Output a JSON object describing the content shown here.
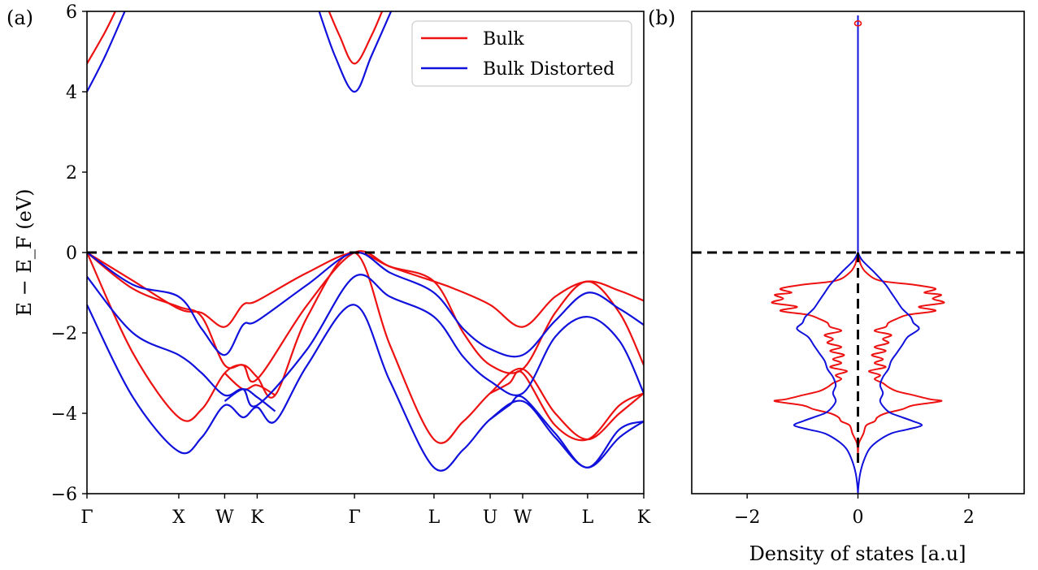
{
  "chart_data": [
    {
      "panel": "(a)",
      "type": "line",
      "ylabel": "E − E_F (eV)",
      "ylim": [
        -6,
        6
      ],
      "yticks": [
        "−6",
        "−4",
        "−2",
        "0",
        "2",
        "4",
        "6"
      ],
      "xticks": [
        {
          "label": "Γ",
          "x": 0
        },
        {
          "label": "X",
          "x": 1.0
        },
        {
          "label": "W",
          "x": 1.5
        },
        {
          "label": "K",
          "x": 1.854
        },
        {
          "label": "Γ",
          "x": 2.914
        },
        {
          "label": "L",
          "x": 3.78
        },
        {
          "label": "U",
          "x": 4.392
        },
        {
          "label": "W",
          "x": 4.746
        },
        {
          "label": "L",
          "x": 5.453
        },
        {
          "label": "K",
          "x": 6.065
        }
      ],
      "xlim": [
        0,
        6.065
      ],
      "fermi_level": 0,
      "legend": {
        "position": "top-right",
        "entries": [
          "Bulk",
          "Bulk Distorted"
        ]
      },
      "series": [
        {
          "name": "Bulk",
          "color": "#ee1111",
          "bands": [
            [
              [
                0,
                0
              ],
              [
                0.5,
                -0.7
              ],
              [
                1.0,
                -1.4
              ],
              [
                1.25,
                -1.5
              ],
              [
                1.5,
                -1.85
              ],
              [
                1.7,
                -1.3
              ],
              [
                1.854,
                -1.2
              ],
              [
                2.4,
                -0.5
              ],
              [
                2.914,
                0
              ],
              [
                3.3,
                -0.35
              ],
              [
                3.78,
                -0.72
              ],
              [
                4.0,
                -0.9
              ],
              [
                4.392,
                -1.3
              ],
              [
                4.746,
                -1.85
              ],
              [
                5.1,
                -1.1
              ],
              [
                5.453,
                -0.72
              ],
              [
                5.8,
                -0.95
              ],
              [
                6.065,
                -1.2
              ]
            ],
            [
              [
                0,
                0
              ],
              [
                0.5,
                -0.9
              ],
              [
                1.0,
                -1.35
              ],
              [
                1.25,
                -1.6
              ],
              [
                1.5,
                -2.8
              ],
              [
                1.7,
                -2.8
              ],
              [
                1.854,
                -3.15
              ],
              [
                2.4,
                -1.3
              ],
              [
                2.914,
                0
              ],
              [
                3.3,
                -0.35
              ],
              [
                3.78,
                -0.72
              ],
              [
                4.1,
                -2.0
              ],
              [
                4.392,
                -2.8
              ],
              [
                4.746,
                -2.9
              ],
              [
                5.1,
                -1.5
              ],
              [
                5.453,
                -0.72
              ],
              [
                5.8,
                -1.5
              ],
              [
                6.065,
                -2.8
              ]
            ],
            [
              [
                0,
                0
              ],
              [
                0.5,
                -2.5
              ],
              [
                1.0,
                -4.1
              ],
              [
                1.25,
                -3.9
              ],
              [
                1.5,
                -3.0
              ],
              [
                1.7,
                -2.8
              ],
              [
                1.854,
                -3.1
              ],
              [
                2.05,
                -3.55
              ],
              [
                2.4,
                -1.6
              ],
              [
                2.914,
                0
              ],
              [
                3.3,
                -2.3
              ],
              [
                3.78,
                -4.65
              ],
              [
                4.1,
                -4.2
              ],
              [
                4.392,
                -3.5
              ],
              [
                4.746,
                -2.9
              ],
              [
                5.1,
                -4.0
              ],
              [
                5.453,
                -4.65
              ],
              [
                5.8,
                -4.0
              ],
              [
                6.065,
                -3.5
              ]
            ],
            [
              [
                1.5,
                -3.0
              ],
              [
                1.7,
                -3.4
              ],
              [
                1.854,
                -3.3
              ],
              [
                2.05,
                -3.55
              ]
            ],
            [
              [
                4.392,
                -3.5
              ],
              [
                4.6,
                -3.25
              ],
              [
                4.746,
                -3.0
              ],
              [
                5.1,
                -4.3
              ],
              [
                5.453,
                -4.65
              ],
              [
                5.8,
                -3.8
              ],
              [
                6.065,
                -3.5
              ]
            ],
            [
              [
                0,
                4.7
              ],
              [
                0.2,
                5.5
              ],
              [
                0.35,
                6.2
              ]
            ],
            [
              [
                2.6,
                6.2
              ],
              [
                2.75,
                5.4
              ],
              [
                2.914,
                4.7
              ],
              [
                3.1,
                5.4
              ],
              [
                3.25,
                6.2
              ]
            ]
          ]
        },
        {
          "name": "Bulk Distorted",
          "color": "#1111dd",
          "bands": [
            [
              [
                0,
                0
              ],
              [
                0.5,
                -0.8
              ],
              [
                1.0,
                -1.1
              ],
              [
                1.25,
                -1.9
              ],
              [
                1.5,
                -2.55
              ],
              [
                1.7,
                -1.8
              ],
              [
                1.854,
                -1.7
              ],
              [
                2.4,
                -0.8
              ],
              [
                2.914,
                0
              ],
              [
                3.3,
                -0.5
              ],
              [
                3.78,
                -1.0
              ],
              [
                4.1,
                -1.9
              ],
              [
                4.392,
                -2.4
              ],
              [
                4.746,
                -2.55
              ],
              [
                5.1,
                -1.7
              ],
              [
                5.453,
                -1.0
              ],
              [
                5.8,
                -1.4
              ],
              [
                6.065,
                -1.8
              ]
            ],
            [
              [
                0,
                -0.6
              ],
              [
                0.5,
                -2.0
              ],
              [
                1.0,
                -2.55
              ],
              [
                1.25,
                -3.0
              ],
              [
                1.5,
                -3.55
              ],
              [
                1.7,
                -3.4
              ],
              [
                1.854,
                -3.8
              ],
              [
                2.4,
                -2.4
              ],
              [
                2.914,
                -0.6
              ],
              [
                3.3,
                -1.1
              ],
              [
                3.78,
                -1.6
              ],
              [
                4.1,
                -2.6
              ],
              [
                4.392,
                -3.2
              ],
              [
                4.746,
                -3.5
              ],
              [
                5.1,
                -2.1
              ],
              [
                5.453,
                -1.6
              ],
              [
                5.8,
                -2.2
              ],
              [
                6.065,
                -3.5
              ]
            ],
            [
              [
                0,
                -1.3
              ],
              [
                0.5,
                -3.6
              ],
              [
                1.0,
                -4.95
              ],
              [
                1.25,
                -4.6
              ],
              [
                1.5,
                -3.8
              ],
              [
                1.7,
                -4.1
              ],
              [
                1.854,
                -3.85
              ],
              [
                2.05,
                -4.2
              ],
              [
                2.4,
                -2.8
              ],
              [
                2.914,
                -1.3
              ],
              [
                3.3,
                -3.2
              ],
              [
                3.78,
                -5.35
              ],
              [
                4.1,
                -4.9
              ],
              [
                4.392,
                -4.15
              ],
              [
                4.746,
                -3.7
              ],
              [
                5.1,
                -4.6
              ],
              [
                5.453,
                -5.35
              ],
              [
                5.8,
                -4.6
              ],
              [
                6.065,
                -4.2
              ]
            ],
            [
              [
                1.5,
                -3.7
              ],
              [
                1.7,
                -3.4
              ],
              [
                1.854,
                -3.6
              ],
              [
                2.05,
                -3.95
              ]
            ],
            [
              [
                4.392,
                -4.15
              ],
              [
                4.6,
                -3.8
              ],
              [
                4.746,
                -3.6
              ],
              [
                5.1,
                -4.5
              ],
              [
                5.453,
                -5.35
              ],
              [
                5.8,
                -4.4
              ],
              [
                6.065,
                -4.2
              ]
            ],
            [
              [
                0,
                4.0
              ],
              [
                0.2,
                4.9
              ],
              [
                0.45,
                6.2
              ]
            ],
            [
              [
                2.5,
                6.2
              ],
              [
                2.7,
                4.9
              ],
              [
                2.914,
                4.0
              ],
              [
                3.1,
                4.9
              ],
              [
                3.35,
                6.2
              ]
            ]
          ]
        }
      ]
    },
    {
      "panel": "(b)",
      "type": "line",
      "xlabel": "Density of states [a.u]",
      "xlim": [
        -3,
        3
      ],
      "xticks": [
        "−2",
        "0",
        "2"
      ],
      "ylim": [
        -6,
        6
      ],
      "fermi_level": 0,
      "mirrored": true,
      "series": [
        {
          "name": "Bulk",
          "color": "#ee1111",
          "profile": [
            [
              0,
              0
            ],
            [
              -0.1,
              0.02
            ],
            [
              -0.3,
              0.05
            ],
            [
              -0.5,
              0.15
            ],
            [
              -0.7,
              0.4
            ],
            [
              -0.8,
              1.0
            ],
            [
              -0.9,
              1.4
            ],
            [
              -1.0,
              1.2
            ],
            [
              -1.05,
              1.5
            ],
            [
              -1.15,
              1.35
            ],
            [
              -1.25,
              1.55
            ],
            [
              -1.35,
              1.1
            ],
            [
              -1.45,
              1.4
            ],
            [
              -1.55,
              0.9
            ],
            [
              -1.65,
              0.7
            ],
            [
              -1.75,
              0.55
            ],
            [
              -1.85,
              0.5
            ],
            [
              -1.95,
              0.3
            ],
            [
              -2.05,
              0.6
            ],
            [
              -2.15,
              0.45
            ],
            [
              -2.25,
              0.55
            ],
            [
              -2.35,
              0.3
            ],
            [
              -2.45,
              0.5
            ],
            [
              -2.55,
              0.25
            ],
            [
              -2.65,
              0.45
            ],
            [
              -2.75,
              0.3
            ],
            [
              -2.85,
              0.5
            ],
            [
              -2.95,
              0.2
            ],
            [
              -3.05,
              0.4
            ],
            [
              -3.15,
              0.3
            ],
            [
              -3.25,
              0.45
            ],
            [
              -3.35,
              0.55
            ],
            [
              -3.45,
              0.7
            ],
            [
              -3.55,
              1.0
            ],
            [
              -3.65,
              1.3
            ],
            [
              -3.7,
              1.5
            ],
            [
              -3.8,
              1.0
            ],
            [
              -3.9,
              0.8
            ],
            [
              -4.0,
              0.5
            ],
            [
              -4.1,
              0.35
            ],
            [
              -4.2,
              0.3
            ],
            [
              -4.3,
              0.15
            ],
            [
              -4.5,
              0.1
            ],
            [
              -4.7,
              0.03
            ],
            [
              -4.8,
              0.01
            ],
            [
              -5.0,
              0
            ]
          ]
        },
        {
          "name": "Bulk Distorted",
          "color": "#1111dd",
          "profile": [
            [
              0,
              0
            ],
            [
              -0.2,
              0.08
            ],
            [
              -0.5,
              0.3
            ],
            [
              -0.8,
              0.5
            ],
            [
              -1.0,
              0.6
            ],
            [
              -1.2,
              0.7
            ],
            [
              -1.4,
              0.8
            ],
            [
              -1.6,
              0.95
            ],
            [
              -1.75,
              1.0
            ],
            [
              -1.9,
              1.1
            ],
            [
              -2.1,
              0.9
            ],
            [
              -2.3,
              0.8
            ],
            [
              -2.5,
              0.7
            ],
            [
              -2.7,
              0.6
            ],
            [
              -2.9,
              0.55
            ],
            [
              -3.1,
              0.45
            ],
            [
              -3.3,
              0.4
            ],
            [
              -3.5,
              0.45
            ],
            [
              -3.7,
              0.4
            ],
            [
              -3.9,
              0.5
            ],
            [
              -4.0,
              0.6
            ],
            [
              -4.1,
              0.8
            ],
            [
              -4.2,
              1.0
            ],
            [
              -4.3,
              1.15
            ],
            [
              -4.4,
              0.9
            ],
            [
              -4.5,
              0.6
            ],
            [
              -4.7,
              0.35
            ],
            [
              -4.9,
              0.2
            ],
            [
              -5.2,
              0.1
            ],
            [
              -5.5,
              0.04
            ],
            [
              -5.8,
              0.01
            ],
            [
              -6.0,
              0
            ]
          ]
        }
      ]
    }
  ]
}
